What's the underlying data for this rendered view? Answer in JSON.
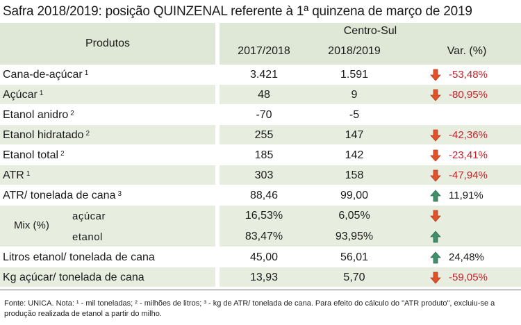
{
  "title": "Safra 2018/2019: posição QUINZENAL referente à 1ª quinzena de março de 2019",
  "header": {
    "produtos": "Produtos",
    "region": "Centro-Sul",
    "col_prev": "2017/2018",
    "col_curr": "2018/2019",
    "col_var": "Var. (%)"
  },
  "rows": [
    {
      "label": "Cana-de-açúcar",
      "note": "1",
      "prev": "3.421",
      "curr": "1.591",
      "var": "-53,48%",
      "trend": "down",
      "shade": false
    },
    {
      "label": "Açúcar",
      "note": "1",
      "prev": "48",
      "curr": "9",
      "var": "-80,95%",
      "trend": "down",
      "shade": true
    },
    {
      "label": "Etanol anidro",
      "note": "2",
      "prev": "-70",
      "curr": "-5",
      "var": "",
      "trend": "none",
      "shade": false
    },
    {
      "label": "Etanol hidratado",
      "note": "2",
      "prev": "255",
      "curr": "147",
      "var": "-42,36%",
      "trend": "down",
      "shade": true
    },
    {
      "label": "Etanol total",
      "note": "2",
      "prev": "185",
      "curr": "142",
      "var": "-23,41%",
      "trend": "down",
      "shade": false
    },
    {
      "label": "ATR",
      "note": "1",
      "prev": "303",
      "curr": "158",
      "var": "-47,94%",
      "trend": "down",
      "shade": true
    },
    {
      "label": "ATR/ tonelada de cana",
      "note": "3",
      "prev": "88,46",
      "curr": "99,00",
      "var": "11,91%",
      "trend": "up",
      "shade": false
    }
  ],
  "mix": {
    "label": "Mix (%)",
    "rows": [
      {
        "label": "açúcar",
        "prev": "16,53%",
        "curr": "6,05%",
        "var": "",
        "trend": "down"
      },
      {
        "label": "etanol",
        "prev": "83,47%",
        "curr": "93,95%",
        "var": "",
        "trend": "up"
      }
    ]
  },
  "tail_rows": [
    {
      "label": "Litros etanol/ tonelada de cana",
      "prev": "45,00",
      "curr": "56,01",
      "var": "24,48%",
      "trend": "up",
      "shade": false
    },
    {
      "label": "Kg açúcar/ tonelada de cana",
      "prev": "13,93",
      "curr": "5,70",
      "var": "-59,05%",
      "trend": "down",
      "shade": true
    }
  ],
  "footnote": "Fonte: UNICA. Nota: ¹ - mil toneladas; ² - milhões de litros; ³ - kg de ATR/ tonelada de cana. Para efeito do cálculo do \"ATR produto\", excluiu-se a produção realizada de etanol a partir do milho.",
  "colors": {
    "header_bg": "#dfe8d6",
    "shade_bg": "#e7eee0",
    "negative": "#c8202a",
    "arrow_down": "#e0532a",
    "arrow_up": "#3f8f6c"
  },
  "icons": {
    "down": "arrow-down-icon",
    "up": "arrow-up-icon"
  }
}
